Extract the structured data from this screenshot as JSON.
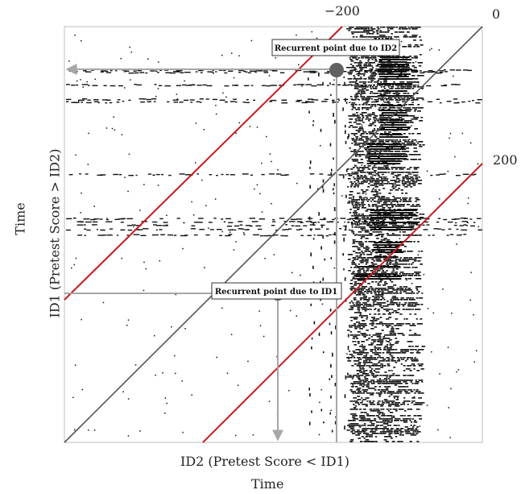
{
  "labels": {
    "lag_negative": "−200",
    "lag_zero": "0",
    "lag_positive": "200",
    "x_axis_name": "ID2 (Pretest Score < ID1)",
    "x_axis_time": "Time",
    "y_axis_time": "Time",
    "y_axis_name": "ID1 (Pretest Score > ID2)"
  },
  "annotations": {
    "id2": "Recurrent point due to ID2",
    "id1": "Recurrent point due to ID1"
  },
  "colors": {
    "diagonal": "#555555",
    "band_line": "#c8191e",
    "arrow": "#a6a6a6",
    "marker": "#616161",
    "recurrence": "#111111",
    "frame": "#bdbdbd"
  }
}
